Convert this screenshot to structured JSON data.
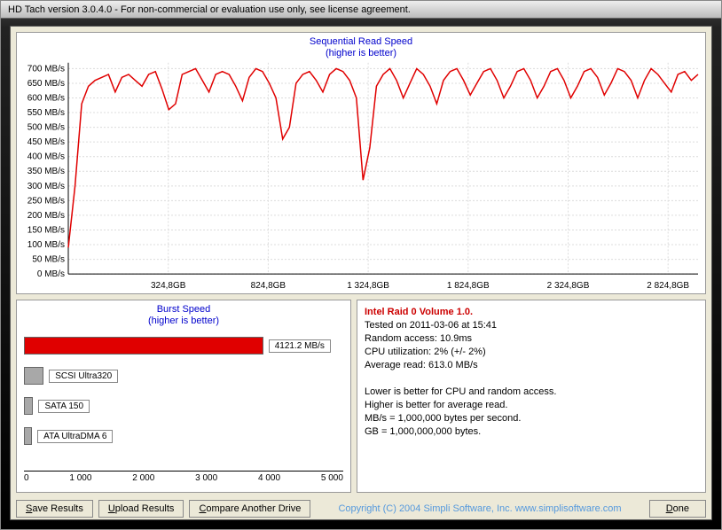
{
  "window": {
    "title": "HD Tach version 3.0.4.0  - For non-commercial or evaluation use only, see license agreement."
  },
  "sequential_chart": {
    "title": "Sequential Read Speed",
    "subtitle": "(higher is better)",
    "type": "line",
    "ylim": [
      0,
      720
    ],
    "ytick_step": 50,
    "ylabel_suffix": " MB/s",
    "xticks": [
      "324,8GB",
      "824,8GB",
      "1 324,8GB",
      "1 824,8GB",
      "2 324,8GB",
      "2 824,8GB"
    ],
    "line_color": "#e00000",
    "grid_color": "#dcdcdc",
    "axis_color": "#000000",
    "background_color": "#ffffff",
    "line_width": 1.5,
    "values": [
      90,
      300,
      580,
      640,
      660,
      670,
      680,
      620,
      670,
      680,
      660,
      640,
      680,
      690,
      630,
      560,
      580,
      680,
      690,
      700,
      660,
      620,
      680,
      690,
      680,
      640,
      590,
      670,
      700,
      690,
      650,
      600,
      460,
      500,
      650,
      680,
      690,
      660,
      620,
      680,
      700,
      690,
      660,
      600,
      320,
      430,
      640,
      680,
      700,
      660,
      600,
      650,
      700,
      680,
      640,
      580,
      660,
      690,
      700,
      660,
      610,
      650,
      690,
      700,
      660,
      600,
      640,
      690,
      700,
      660,
      600,
      640,
      690,
      700,
      660,
      600,
      640,
      690,
      700,
      670,
      610,
      650,
      700,
      690,
      660,
      600,
      660,
      700,
      680,
      650,
      620,
      680,
      690,
      660,
      680
    ]
  },
  "burst_chart": {
    "title": "Burst Speed",
    "subtitle": "(higher is better)",
    "type": "bar-horizontal",
    "xlim": [
      0,
      5500
    ],
    "xticks": [
      "0",
      "1 000",
      "2 000",
      "3 000",
      "4 000",
      "5 000"
    ],
    "background_color": "#ffffff",
    "bars": [
      {
        "value": 4121.2,
        "label": "4121.2 MB/s",
        "color": "#e00000",
        "name": "tested-drive"
      },
      {
        "value": 340,
        "label": "SCSI Ultra320",
        "color": "#a8a8a8",
        "name": "scsi-ultra320"
      },
      {
        "value": 160,
        "label": "SATA 150",
        "color": "#a8a8a8",
        "name": "sata-150"
      },
      {
        "value": 140,
        "label": "ATA UltraDMA 6",
        "color": "#a8a8a8",
        "name": "ata-ultradma-6"
      }
    ]
  },
  "info": {
    "drive_name": "Intel Raid 0 Volume 1.0.",
    "tested_on": "Tested on 2011-03-06 at 15:41",
    "random_access": "Random access: 10.9ms",
    "cpu_util": "CPU utilization: 2% (+/- 2%)",
    "avg_read": "Average read: 613.0 MB/s",
    "note1": "Lower is better for CPU and random access.",
    "note2": "Higher is better for average read.",
    "note3": "MB/s = 1,000,000 bytes per second.",
    "note4": "GB = 1,000,000,000 bytes."
  },
  "buttons": {
    "save": "Save Results",
    "upload": "Upload Results",
    "compare": "Compare Another Drive",
    "done": "Done"
  },
  "copyright": "Copyright (C) 2004 Simpli Software, Inc. www.simplisoftware.com"
}
